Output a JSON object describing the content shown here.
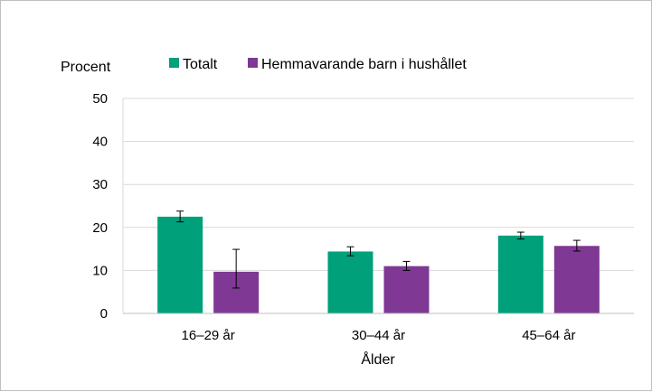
{
  "chart_data": {
    "type": "bar",
    "ylabel": "Procent",
    "xlabel": "Ålder",
    "categories": [
      "16–29 år",
      "30–44 år",
      "45–64 år"
    ],
    "ylim": [
      0,
      50
    ],
    "yticks": [
      "0",
      "10",
      "20",
      "30",
      "40",
      "50"
    ],
    "grid": true,
    "legend_position": "top",
    "series": [
      {
        "name": "Totalt",
        "color": "#00a07a",
        "values": [
          22.5,
          14.4,
          18.1
        ],
        "error_low": [
          21.3,
          13.4,
          17.3
        ],
        "error_high": [
          23.8,
          15.5,
          18.9
        ]
      },
      {
        "name": "Hemmavarande barn i hushållet",
        "color": "#7f3894",
        "values": [
          9.7,
          11.0,
          15.7
        ],
        "error_low": [
          5.9,
          10.0,
          14.5
        ],
        "error_high": [
          14.9,
          12.1,
          17.0
        ]
      }
    ]
  }
}
